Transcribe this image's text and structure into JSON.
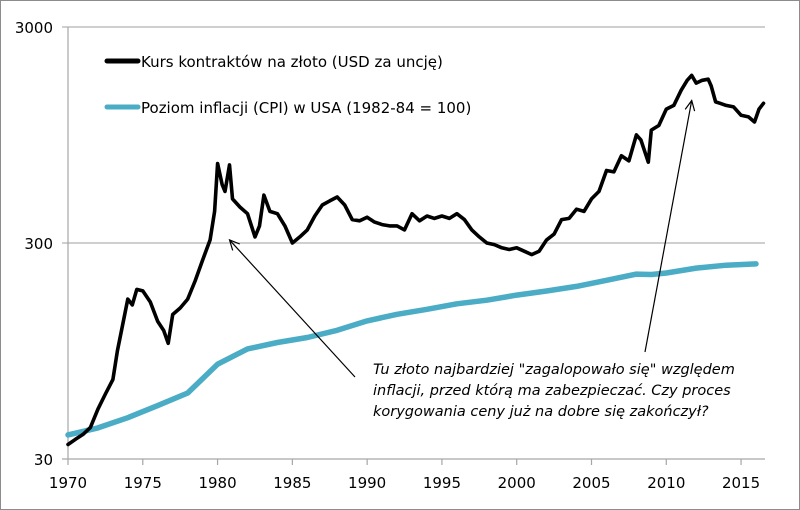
{
  "chart_data": {
    "type": "line",
    "title": "",
    "xlabel": "",
    "ylabel": "",
    "y_scale": "log",
    "ylim": [
      30,
      3000
    ],
    "xlim": [
      1970,
      2016.6
    ],
    "grid": {
      "horizontal": true,
      "vertical": false
    },
    "x_ticks": [
      1970,
      1975,
      1980,
      1985,
      1990,
      1995,
      2000,
      2005,
      2010,
      2015
    ],
    "x_tick_labels": [
      "1970",
      "1975",
      "1980",
      "1985",
      "1990",
      "1995",
      "2000",
      "2005",
      "2010",
      "2015"
    ],
    "y_ticks": [
      30,
      300,
      3000
    ],
    "y_tick_labels": [
      "30",
      "300",
      "3000"
    ],
    "legend": {
      "placement": "top-left"
    },
    "series": [
      {
        "name": "Kurs kontraktów na złoto (USD za uncję)",
        "color": "#000000",
        "x": [
          1970.0,
          1970.5,
          1971.0,
          1971.5,
          1972.0,
          1972.5,
          1973.0,
          1973.3,
          1973.6,
          1974.0,
          1974.3,
          1974.6,
          1975.0,
          1975.5,
          1976.0,
          1976.4,
          1976.7,
          1977.0,
          1977.5,
          1978.0,
          1978.5,
          1979.0,
          1979.5,
          1979.8,
          1980.0,
          1980.3,
          1980.5,
          1980.8,
          1981.0,
          1981.5,
          1982.0,
          1982.5,
          1982.8,
          1983.1,
          1983.5,
          1984.0,
          1984.5,
          1985.0,
          1985.5,
          1986.0,
          1986.5,
          1987.0,
          1987.5,
          1988.0,
          1988.5,
          1989.0,
          1989.5,
          1990.0,
          1990.5,
          1991.0,
          1991.5,
          1992.0,
          1992.5,
          1993.0,
          1993.5,
          1994.0,
          1994.5,
          1995.0,
          1995.5,
          1996.0,
          1996.5,
          1997.0,
          1997.5,
          1998.0,
          1998.5,
          1999.0,
          1999.5,
          2000.0,
          2000.5,
          2001.0,
          2001.5,
          2002.0,
          2002.5,
          2003.0,
          2003.5,
          2004.0,
          2004.5,
          2005.0,
          2005.5,
          2006.0,
          2006.5,
          2007.0,
          2007.5,
          2008.0,
          2008.3,
          2008.8,
          2009.0,
          2009.5,
          2010.0,
          2010.5,
          2011.0,
          2011.4,
          2011.7,
          2012.0,
          2012.4,
          2012.8,
          2013.0,
          2013.3,
          2013.6,
          2014.0,
          2014.5,
          2015.0,
          2015.5,
          2015.9,
          2016.2,
          2016.5
        ],
        "values": [
          35,
          37,
          39,
          42,
          51,
          60,
          70,
          95,
          120,
          165,
          155,
          183,
          180,
          160,
          130,
          118,
          103,
          140,
          150,
          165,
          200,
          250,
          310,
          420,
          700,
          560,
          520,
          690,
          480,
          440,
          410,
          320,
          360,
          500,
          420,
          410,
          360,
          300,
          320,
          345,
          400,
          450,
          470,
          490,
          450,
          385,
          380,
          395,
          375,
          365,
          360,
          360,
          345,
          410,
          380,
          400,
          390,
          400,
          390,
          410,
          385,
          345,
          320,
          300,
          295,
          285,
          280,
          285,
          275,
          265,
          275,
          310,
          330,
          385,
          390,
          430,
          420,
          480,
          520,
          650,
          640,
          760,
          720,
          950,
          900,
          710,
          1000,
          1050,
          1250,
          1300,
          1530,
          1700,
          1790,
          1650,
          1700,
          1720,
          1600,
          1350,
          1330,
          1300,
          1280,
          1170,
          1150,
          1090,
          1250,
          1330
        ]
      },
      {
        "name": "Poziom inflacji (CPI) w USA (1982-84 = 100)",
        "color": "#4bacc6",
        "x": [
          1970,
          1972,
          1974,
          1976,
          1978,
          1980,
          1982,
          1984,
          1986,
          1988,
          1990,
          1992,
          1994,
          1996,
          1998,
          2000,
          2002,
          2004,
          2006,
          2008,
          2009,
          2010,
          2012,
          2014,
          2016
        ],
        "values": [
          38.8,
          41.8,
          46.6,
          53.0,
          60.6,
          82.4,
          97.0,
          103.9,
          109.6,
          118.3,
          130.7,
          140.3,
          148.0,
          156.9,
          163.0,
          172.2,
          179.9,
          188.9,
          201.6,
          215.3,
          214.5,
          218.0,
          229.6,
          236.7,
          240.0
        ]
      }
    ],
    "annotations": [
      {
        "text_lines": [
          "Tu złoto najbardziej \"zagalopowało się\" względem",
          "inflacji, przed którą ma zabezpieczać. Czy proces",
          "korygowania ceny już na dobre się zakończył?"
        ],
        "arrows_to": [
          {
            "x": 1980.8,
            "y": 310
          },
          {
            "x": 2011.7,
            "y": 1370
          }
        ]
      }
    ]
  }
}
